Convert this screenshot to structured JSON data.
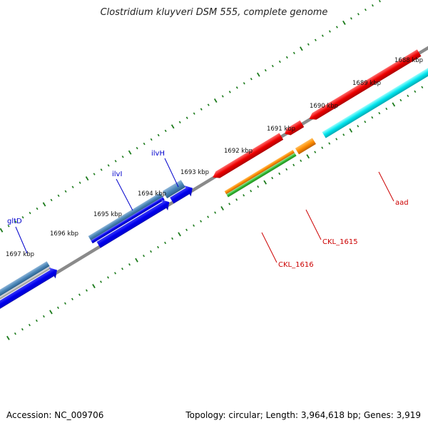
{
  "title": "Clostridium kluyveri DSM 555, complete genome",
  "footer": {
    "accession": "Accession: NC_009706",
    "summary": "Topology: circular; Length: 3,964,618 bp; Genes: 3,919"
  },
  "scale_labels": [
    "1688 kbp",
    "1689 kbp",
    "1690 kbp",
    "1691 kbp",
    "1692 kbp",
    "1693 kbp",
    "1694 kbp",
    "1695 kbp",
    "1696 kbp",
    "1697 kbp"
  ],
  "gene_labels": [
    {
      "id": "gltD",
      "text": "gltD",
      "color": "#0000cc"
    },
    {
      "id": "ilvI",
      "text": "ilvI",
      "color": "#0000cc"
    },
    {
      "id": "ilvH",
      "text": "ilvH",
      "color": "#0000cc"
    },
    {
      "id": "aad",
      "text": "aad",
      "color": "#cc0000"
    },
    {
      "id": "ckl1615",
      "text": "CKL_1615",
      "color": "#cc0000"
    },
    {
      "id": "ckl1616",
      "text": "CKL_1616",
      "color": "#cc0000"
    }
  ],
  "colors": {
    "backbone": "#8a8a8a",
    "tick": "#1a7a1a",
    "cds_forward": "#0000ee",
    "cds_reverse": "#ee0000",
    "steelblue": "#4a86b8",
    "orange": "#ff8c00",
    "green": "#33bb33",
    "cyan": "#00e5ee"
  }
}
